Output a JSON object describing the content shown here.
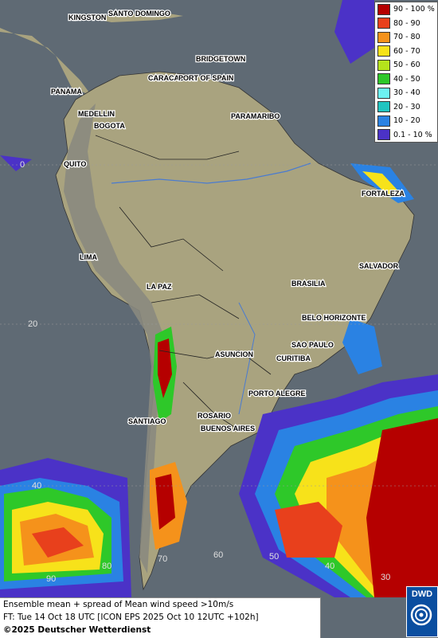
{
  "legend": {
    "items": [
      {
        "label": "90 - 100 %",
        "color": "#b50000"
      },
      {
        "label": "80 - 90",
        "color": "#e8401c"
      },
      {
        "label": "70 - 80",
        "color": "#f5921b"
      },
      {
        "label": "60 - 70",
        "color": "#f7e21a"
      },
      {
        "label": "50 - 60",
        "color": "#b5e31c"
      },
      {
        "label": "40 - 50",
        "color": "#2ec829"
      },
      {
        "label": "30 - 40",
        "color": "#6df2f2"
      },
      {
        "label": "20 - 30",
        "color": "#20c4c0"
      },
      {
        "label": "10 - 20",
        "color": "#2a82e3"
      },
      {
        "label": "0.1 - 10 %",
        "color": "#4b32c7"
      }
    ]
  },
  "cities": {
    "kingston": "KINGSTON",
    "santo_domingo": "SANTO DOMINGO",
    "bridgetown": "BRIDGETOWN",
    "caracas": "CARACAS",
    "port_of_spain": "PORT OF SPAIN",
    "panama": "PANAMA",
    "medellin": "MEDELLIN",
    "bogota": "BOGOTA",
    "paramaribo": "PARAMARIBO",
    "quito": "QUITO",
    "fortaleza": "FORTALEZA",
    "lima": "LIMA",
    "salvador": "SALVADOR",
    "brasilia": "BRASILIA",
    "la_paz": "LA PAZ",
    "belo_horizonte": "BELO HORIZONTE",
    "sao_paulo": "SAO PAULO",
    "asuncion": "ASUNCION",
    "curitiba": "CURITIBA",
    "porto_alegre": "PORTO ALEGRE",
    "rosario": "ROSARIO",
    "santiago": "SANTIAGO",
    "buenos_aires": "BUENOS AIRES"
  },
  "grid_labels": {
    "lat_0": "0",
    "lat_20": "20",
    "lat_40": "40",
    "lon_90": "90",
    "lon_80": "80",
    "lon_70": "70",
    "lon_60": "60",
    "lon_50": "50",
    "lon_40": "40",
    "lon_30": "30"
  },
  "caption": {
    "line1": "Ensemble mean + spread of Mean wind speed >10m/s",
    "line2": "FT: Tue 14 Oct 18 UTC [ICON EPS 2025 Oct 10 12UTC +102h]",
    "line3": "©2025 Deutscher Wetterdienst"
  },
  "logo": {
    "text": "DWD"
  },
  "colors": {
    "ocean": "#5f6a74",
    "land": "#a9a37f",
    "andes": "#8a8a80"
  }
}
